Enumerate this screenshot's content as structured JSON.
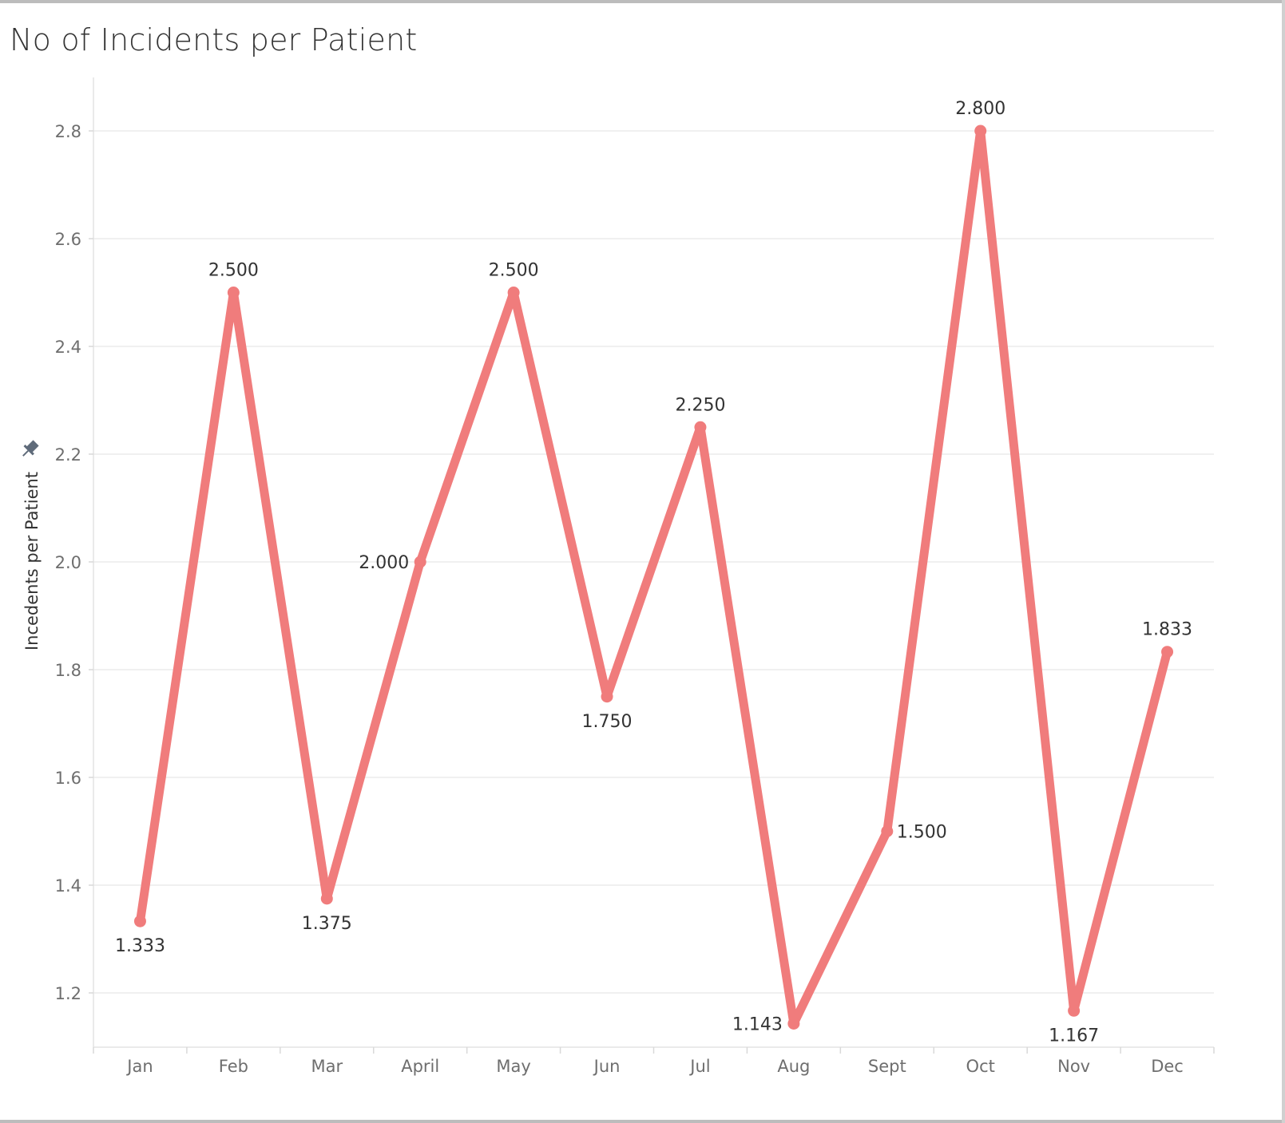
{
  "page": {
    "title": "No of Incidents per Patient"
  },
  "chart_data": {
    "type": "line",
    "title": "No of Incidents per Patient",
    "xlabel": "",
    "ylabel": "Incedents per Patient",
    "categories": [
      "Jan",
      "Feb",
      "Mar",
      "April",
      "May",
      "Jun",
      "Jul",
      "Aug",
      "Sept",
      "Oct",
      "Nov",
      "Dec"
    ],
    "values": [
      1.333,
      2.5,
      1.375,
      2.0,
      2.5,
      1.75,
      2.25,
      1.143,
      1.5,
      2.8,
      1.167,
      1.833
    ],
    "data_labels": [
      "1.333",
      "2.500",
      "1.375",
      "2.000",
      "2.500",
      "1.750",
      "2.250",
      "1.143",
      "1.500",
      "2.800",
      "1.167",
      "1.833"
    ],
    "label_positions": [
      "below",
      "above",
      "below",
      "left",
      "above",
      "below",
      "above",
      "left",
      "right",
      "above",
      "below",
      "above"
    ],
    "yticks": [
      1.2,
      1.4,
      1.6,
      1.8,
      2.0,
      2.2,
      2.4,
      2.6,
      2.8
    ],
    "ytick_labels": [
      "1.2",
      "1.4",
      "1.6",
      "1.8",
      "2.0",
      "2.2",
      "2.4",
      "2.6",
      "2.8"
    ],
    "ylim": [
      1.1,
      2.9
    ],
    "grid": true,
    "line_color": "#f07c7c",
    "grid_color": "#ececec",
    "pin_icon": "pin-icon"
  }
}
